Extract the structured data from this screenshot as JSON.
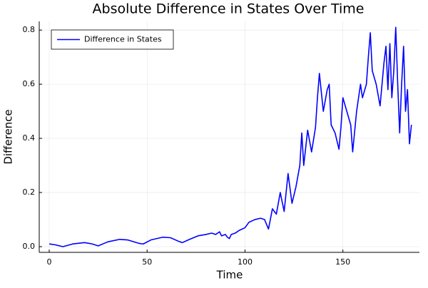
{
  "chart_data": {
    "type": "line",
    "title": "Absolute Difference in States Over Time",
    "xlabel": "Time",
    "ylabel": "Difference",
    "x": [
      0,
      3,
      7,
      12,
      18,
      22,
      25,
      30,
      36,
      40,
      46,
      48,
      52,
      58,
      62,
      66,
      68,
      72,
      76,
      80,
      83,
      85,
      87,
      88,
      90,
      91,
      92,
      93,
      95,
      97,
      100,
      102,
      105,
      108,
      110,
      112,
      114,
      116,
      118,
      120,
      122,
      124,
      126,
      128,
      129,
      130,
      132,
      134,
      136,
      137,
      138,
      140,
      142,
      143,
      144,
      146,
      148,
      149,
      150,
      152,
      154,
      155,
      157,
      159,
      160,
      162,
      163,
      164,
      165,
      167,
      169,
      170,
      171,
      172,
      173,
      174,
      175,
      176,
      177,
      178,
      179,
      180,
      181,
      182,
      183,
      184,
      185
    ],
    "series": [
      {
        "name": "Difference in States",
        "color": "#0000ff",
        "values": [
          0.01,
          0.007,
          0.0,
          0.01,
          0.015,
          0.01,
          0.003,
          0.018,
          0.027,
          0.025,
          0.012,
          0.01,
          0.025,
          0.035,
          0.033,
          0.02,
          0.015,
          0.028,
          0.04,
          0.045,
          0.05,
          0.045,
          0.055,
          0.04,
          0.045,
          0.035,
          0.03,
          0.045,
          0.05,
          0.06,
          0.07,
          0.09,
          0.1,
          0.105,
          0.1,
          0.065,
          0.14,
          0.12,
          0.2,
          0.13,
          0.27,
          0.16,
          0.22,
          0.3,
          0.42,
          0.3,
          0.43,
          0.35,
          0.44,
          0.55,
          0.64,
          0.5,
          0.58,
          0.6,
          0.45,
          0.42,
          0.36,
          0.44,
          0.55,
          0.5,
          0.45,
          0.35,
          0.5,
          0.6,
          0.55,
          0.6,
          0.7,
          0.79,
          0.65,
          0.6,
          0.52,
          0.6,
          0.68,
          0.74,
          0.58,
          0.75,
          0.55,
          0.65,
          0.81,
          0.6,
          0.42,
          0.6,
          0.74,
          0.5,
          0.58,
          0.38,
          0.45
        ]
      }
    ],
    "xlim": [
      -5.1,
      189.1
    ],
    "xticks": [
      0,
      50,
      100,
      150
    ],
    "ylim": [
      -0.021,
      0.832
    ],
    "yticks": [
      {
        "value": 0,
        "label": "0.0"
      },
      0.2,
      0.4,
      0.6,
      0.8
    ],
    "grid": true,
    "legend": "top-left"
  }
}
